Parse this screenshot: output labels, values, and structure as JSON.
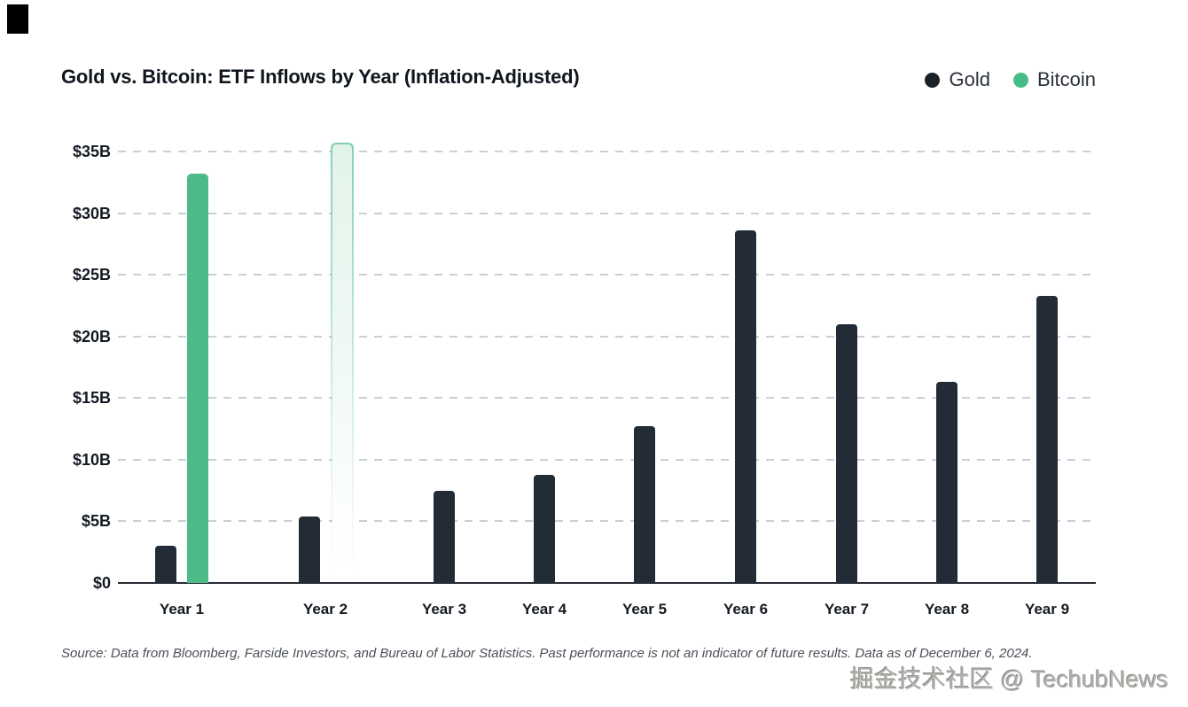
{
  "page": {
    "title": "Gold vs. Bitcoin: ETF Inflows by Year (Inflation-Adjusted)",
    "legend": [
      {
        "label": "Gold",
        "color": "#1b2129"
      },
      {
        "label": "Bitcoin",
        "color": "#45bd87"
      }
    ]
  },
  "chart_data": {
    "type": "bar",
    "title": "Gold vs. Bitcoin: ETF Inflows by Year (Inflation-Adjusted)",
    "categories": [
      "Year 1",
      "Year 2",
      "Year 3",
      "Year 4",
      "Year 5",
      "Year 6",
      "Year 7",
      "Year 8",
      "Year 9"
    ],
    "series": [
      {
        "name": "Gold",
        "color": "#222b36",
        "values": [
          3.0,
          5.4,
          7.5,
          8.8,
          12.7,
          28.6,
          21.0,
          16.3,
          23.3
        ]
      },
      {
        "name": "Bitcoin",
        "color": "#4cbb88",
        "values": [
          33.2,
          35.7,
          null,
          null,
          null,
          null,
          null,
          null,
          null
        ],
        "bar_styles": [
          "solid",
          "outlined-faded",
          null,
          null,
          null,
          null,
          null,
          null,
          null
        ]
      }
    ],
    "unit": "billions USD",
    "ylim": [
      0,
      35
    ],
    "ytick_step": 5,
    "ytick_labels": [
      "$0",
      "$5B",
      "$10B",
      "$15B",
      "$20B",
      "$25B",
      "$30B",
      "$35B"
    ],
    "grid": "horizontal dashed",
    "legend_position": "top-right"
  },
  "footer": {
    "source": "Source: Data from Bloomberg, Farside Investors, and Bureau of Labor Statistics. Past performance is not an indicator of future results. Data as of December 6, 2024.",
    "watermark": "掘金技术社区 @ TechubNews"
  }
}
